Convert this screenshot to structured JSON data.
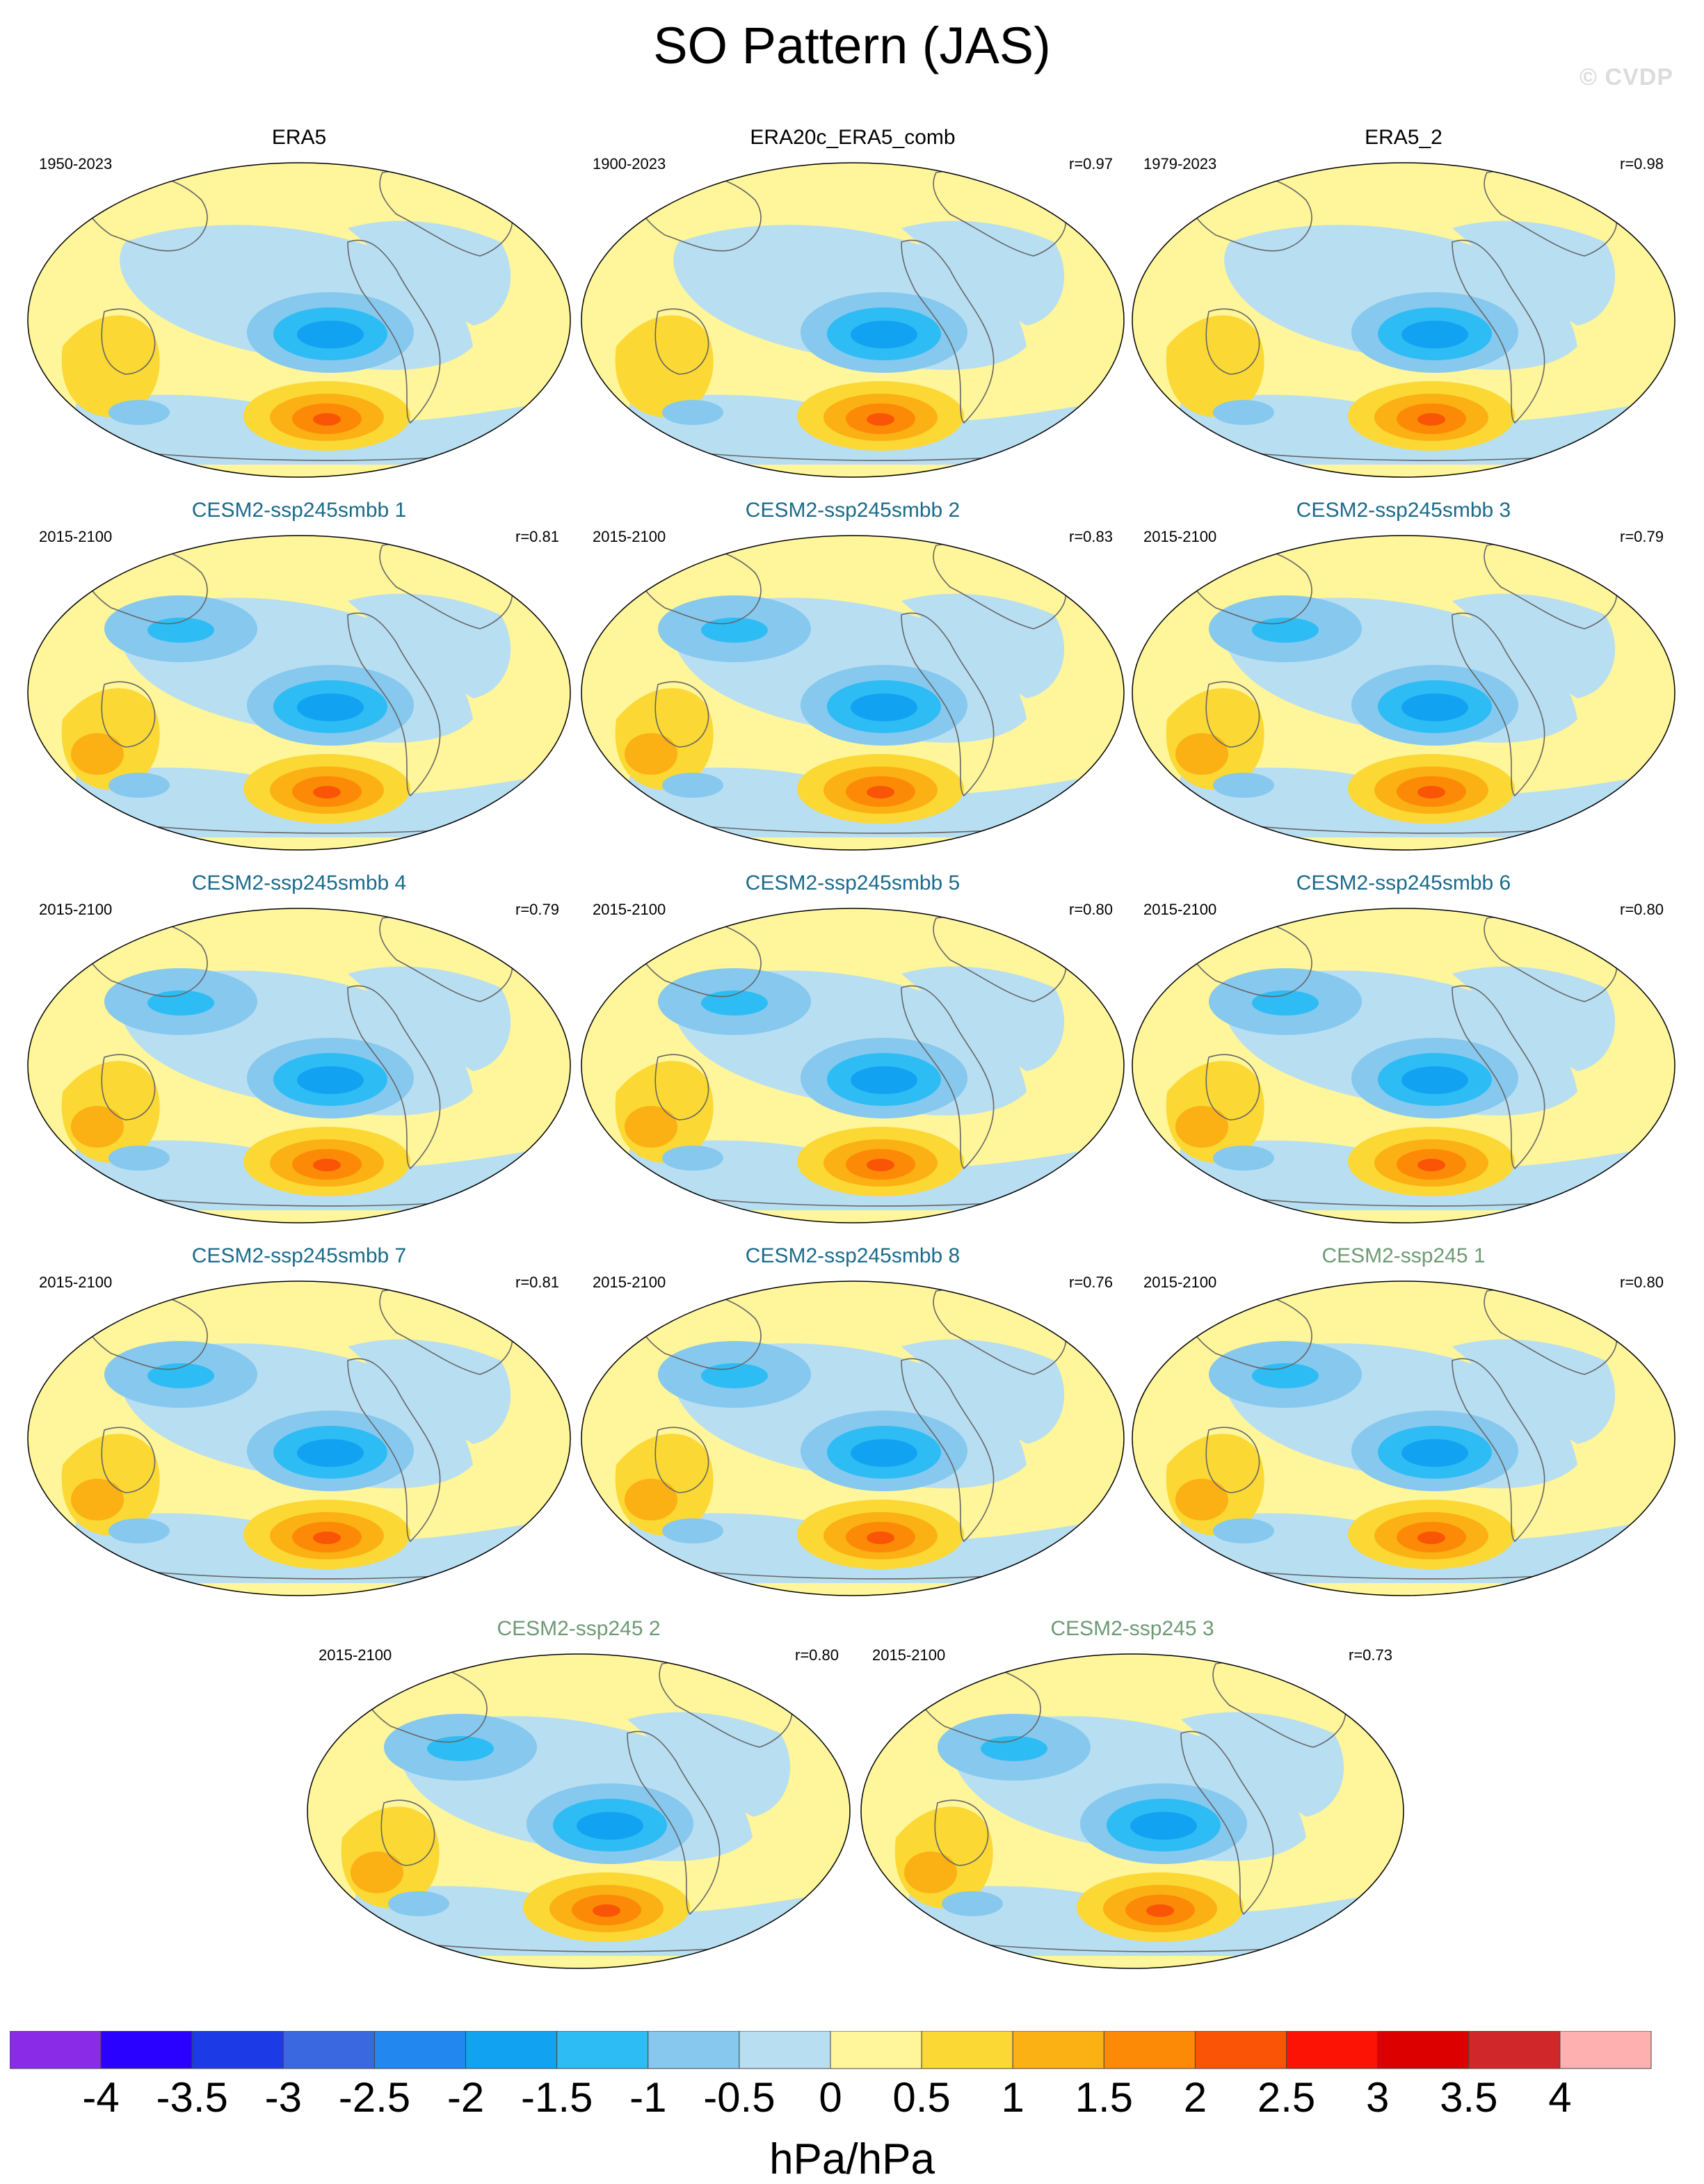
{
  "figure": {
    "title": "SO Pattern (JAS)",
    "watermark": "© CVDP"
  },
  "panels": [
    {
      "title": "ERA5",
      "title_color": "#000000",
      "period": "1950-2023",
      "corr": "",
      "kind": "obs"
    },
    {
      "title": "ERA20c_ERA5_comb",
      "title_color": "#000000",
      "period": "1900-2023",
      "corr": "r=0.97",
      "kind": "obs"
    },
    {
      "title": "ERA5_2",
      "title_color": "#000000",
      "period": "1979-2023",
      "corr": "r=0.98",
      "kind": "obs"
    },
    {
      "title": "CESM2-ssp245smbb 1",
      "title_color": "#1a6a8a",
      "period": "2015-2100",
      "corr": "r=0.81",
      "kind": "model"
    },
    {
      "title": "CESM2-ssp245smbb 2",
      "title_color": "#1a6a8a",
      "period": "2015-2100",
      "corr": "r=0.83",
      "kind": "model"
    },
    {
      "title": "CESM2-ssp245smbb 3",
      "title_color": "#1a6a8a",
      "period": "2015-2100",
      "corr": "r=0.79",
      "kind": "model"
    },
    {
      "title": "CESM2-ssp245smbb 4",
      "title_color": "#1a6a8a",
      "period": "2015-2100",
      "corr": "r=0.79",
      "kind": "model"
    },
    {
      "title": "CESM2-ssp245smbb 5",
      "title_color": "#1a6a8a",
      "period": "2015-2100",
      "corr": "r=0.80",
      "kind": "model"
    },
    {
      "title": "CESM2-ssp245smbb 6",
      "title_color": "#1a6a8a",
      "period": "2015-2100",
      "corr": "r=0.80",
      "kind": "model"
    },
    {
      "title": "CESM2-ssp245smbb 7",
      "title_color": "#1a6a8a",
      "period": "2015-2100",
      "corr": "r=0.81",
      "kind": "model"
    },
    {
      "title": "CESM2-ssp245smbb 8",
      "title_color": "#1a6a8a",
      "period": "2015-2100",
      "corr": "r=0.76",
      "kind": "model"
    },
    {
      "title": "CESM2-ssp245 1",
      "title_color": "#6d9a74",
      "period": "2015-2100",
      "corr": "r=0.80",
      "kind": "model"
    },
    {
      "title": "CESM2-ssp245 2",
      "title_color": "#6d9a74",
      "period": "2015-2100",
      "corr": "r=0.80",
      "kind": "model"
    },
    {
      "title": "CESM2-ssp245 3",
      "title_color": "#6d9a74",
      "period": "2015-2100",
      "corr": "r=0.73",
      "kind": "model"
    }
  ],
  "colorbar": {
    "colors": [
      "#8a2be8",
      "#2a00ff",
      "#1c3ae6",
      "#3a68e0",
      "#2288f0",
      "#12a2f2",
      "#2ebcf4",
      "#86c8ee",
      "#b8def2",
      "#fff59a",
      "#fbd834",
      "#fbb014",
      "#fc8a06",
      "#fa5406",
      "#fd1206",
      "#dc0000",
      "#d0282a",
      "#feb0b0"
    ],
    "tick_labels": [
      "-4",
      "-3.5",
      "-3",
      "-2.5",
      "-2",
      "-1.5",
      "-1",
      "-0.5",
      "0",
      "0.5",
      "1",
      "1.5",
      "2",
      "2.5",
      "3",
      "3.5",
      "4"
    ],
    "units": "hPa/hPa"
  }
}
